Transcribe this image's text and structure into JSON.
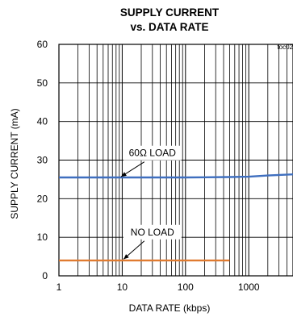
{
  "chart_data": {
    "type": "line",
    "title_line1": "SUPPLY CURRENT",
    "title_line2": "vs. DATA RATE",
    "corner_note": "toc02",
    "xlabel": "DATA RATE (kbps)",
    "ylabel": "SUPPLY CURRENT (mA)",
    "x_scale": "log",
    "xlim": [
      1,
      5000
    ],
    "ylim": [
      0,
      60
    ],
    "x_ticks": [
      {
        "value": 1,
        "label": "1"
      },
      {
        "value": 10,
        "label": "10"
      },
      {
        "value": 100,
        "label": "100"
      },
      {
        "value": 1000,
        "label": "1000"
      }
    ],
    "y_ticks": [
      {
        "value": 0,
        "label": "0"
      },
      {
        "value": 10,
        "label": "10"
      },
      {
        "value": 20,
        "label": "20"
      },
      {
        "value": 30,
        "label": "30"
      },
      {
        "value": 40,
        "label": "40"
      },
      {
        "value": 50,
        "label": "50"
      },
      {
        "value": 60,
        "label": "60"
      }
    ],
    "grid": true,
    "series": [
      {
        "color": "#3f6fbf",
        "annotation": "60Ω LOAD",
        "x": [
          1,
          10,
          100,
          500,
          1000,
          2000,
          5000
        ],
        "y": [
          25.5,
          25.5,
          25.5,
          25.6,
          25.7,
          26.0,
          26.3
        ]
      },
      {
        "color": "#e07b30",
        "annotation": "NO LOAD",
        "x": [
          1,
          10,
          100,
          500
        ],
        "y": [
          4,
          4,
          4,
          4
        ]
      }
    ],
    "annotations": [
      {
        "series": 0,
        "text": "60Ω LOAD",
        "text_at": [
          30,
          31
        ],
        "arrow_to": [
          9.6,
          25.7
        ]
      },
      {
        "series": 1,
        "text": "NO LOAD",
        "text_at": [
          30,
          10.5
        ],
        "arrow_to": [
          10.5,
          4.3
        ]
      }
    ]
  }
}
